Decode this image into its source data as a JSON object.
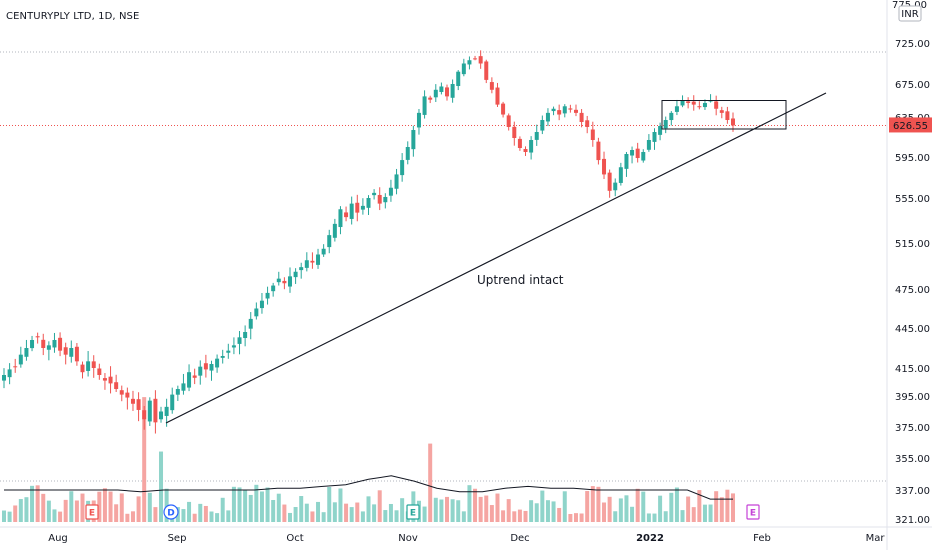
{
  "header": {
    "title": "CENTURYPLY LTD, 1D, NSE"
  },
  "currency": "INR",
  "colors": {
    "up": "#26a69a",
    "down": "#ef5350",
    "vol_up": "#8fd4ca",
    "vol_down": "#f5a5a2",
    "text": "#131722",
    "price_tag": "#ef5350"
  },
  "chart_data": {
    "type": "candlestick",
    "title": "CENTURYPLY LTD, 1D, NSE",
    "y_axis": {
      "ticks": [
        725,
        675,
        635,
        595,
        555,
        515,
        475,
        445,
        415,
        395,
        375,
        355,
        337,
        321
      ],
      "tick_labels": [
        "725.00",
        "675.00",
        "635.00",
        "595.00",
        "555.00",
        "515.00",
        "475.00",
        "445.00",
        "415.00",
        "395.00",
        "375.00",
        "355.00",
        "337.00",
        "321.00"
      ],
      "top_label": "775.00"
    },
    "x_axis": {
      "labels": [
        "Aug",
        "Sep",
        "Oct",
        "Nov",
        "Dec",
        "2022",
        "Feb",
        "Mar"
      ],
      "bold": [
        "2022"
      ]
    },
    "last_price": {
      "value": 626.55,
      "label": "626.55"
    },
    "price_line": 713,
    "volume_ma_line_label": "",
    "candles_close": [
      410,
      414,
      416,
      425,
      430,
      436,
      438,
      430,
      432,
      436,
      428,
      425,
      430,
      420,
      412,
      420,
      415,
      410,
      406,
      404,
      400,
      396,
      394,
      390,
      386,
      380,
      392,
      378,
      385,
      388,
      396,
      400,
      404,
      412,
      408,
      416,
      414,
      418,
      422,
      424,
      428,
      432,
      438,
      442,
      452,
      460,
      466,
      472,
      478,
      484,
      480,
      486,
      490,
      494,
      500,
      498,
      505,
      510,
      522,
      532,
      545,
      538,
      550,
      542,
      548,
      555,
      560,
      550,
      556,
      565,
      578,
      592,
      605,
      622,
      640,
      660,
      656,
      668,
      672,
      660,
      675,
      690,
      700,
      704,
      706,
      700,
      680,
      668,
      650,
      638,
      625,
      614,
      604,
      600,
      612,
      620,
      632,
      640,
      645,
      638,
      648,
      644,
      640,
      630,
      625,
      612,
      592,
      578,
      562,
      570,
      585,
      598,
      602,
      594,
      600,
      612,
      620,
      626,
      632,
      640,
      648,
      655,
      652,
      650,
      648,
      652,
      655,
      645,
      640,
      632,
      626.55
    ],
    "volume_ma": [
      337,
      337,
      337,
      337,
      337,
      337,
      336,
      337,
      337,
      337,
      337,
      337,
      338,
      338,
      339,
      340,
      343,
      345,
      342,
      338,
      336,
      336,
      338,
      339,
      338,
      338,
      337,
      337,
      337,
      337,
      337,
      332,
      332
    ],
    "drawings": [
      {
        "kind": "trendline",
        "from": {
          "x_index": 0,
          "y": 383
        },
        "to": {
          "x_index": 1,
          "y": 665
        }
      },
      {
        "kind": "rectangle",
        "from_price": 655,
        "to_price": 623
      }
    ],
    "annotation": "Uptrend intact",
    "events": [
      {
        "label": "E",
        "type": "earnings",
        "color": "#ef5350"
      },
      {
        "label": "D",
        "type": "dividend",
        "color": "#2962ff"
      },
      {
        "label": "E",
        "type": "earnings",
        "color": "#26a69a"
      },
      {
        "label": "E",
        "type": "earnings",
        "color": "#c542d7"
      }
    ]
  }
}
